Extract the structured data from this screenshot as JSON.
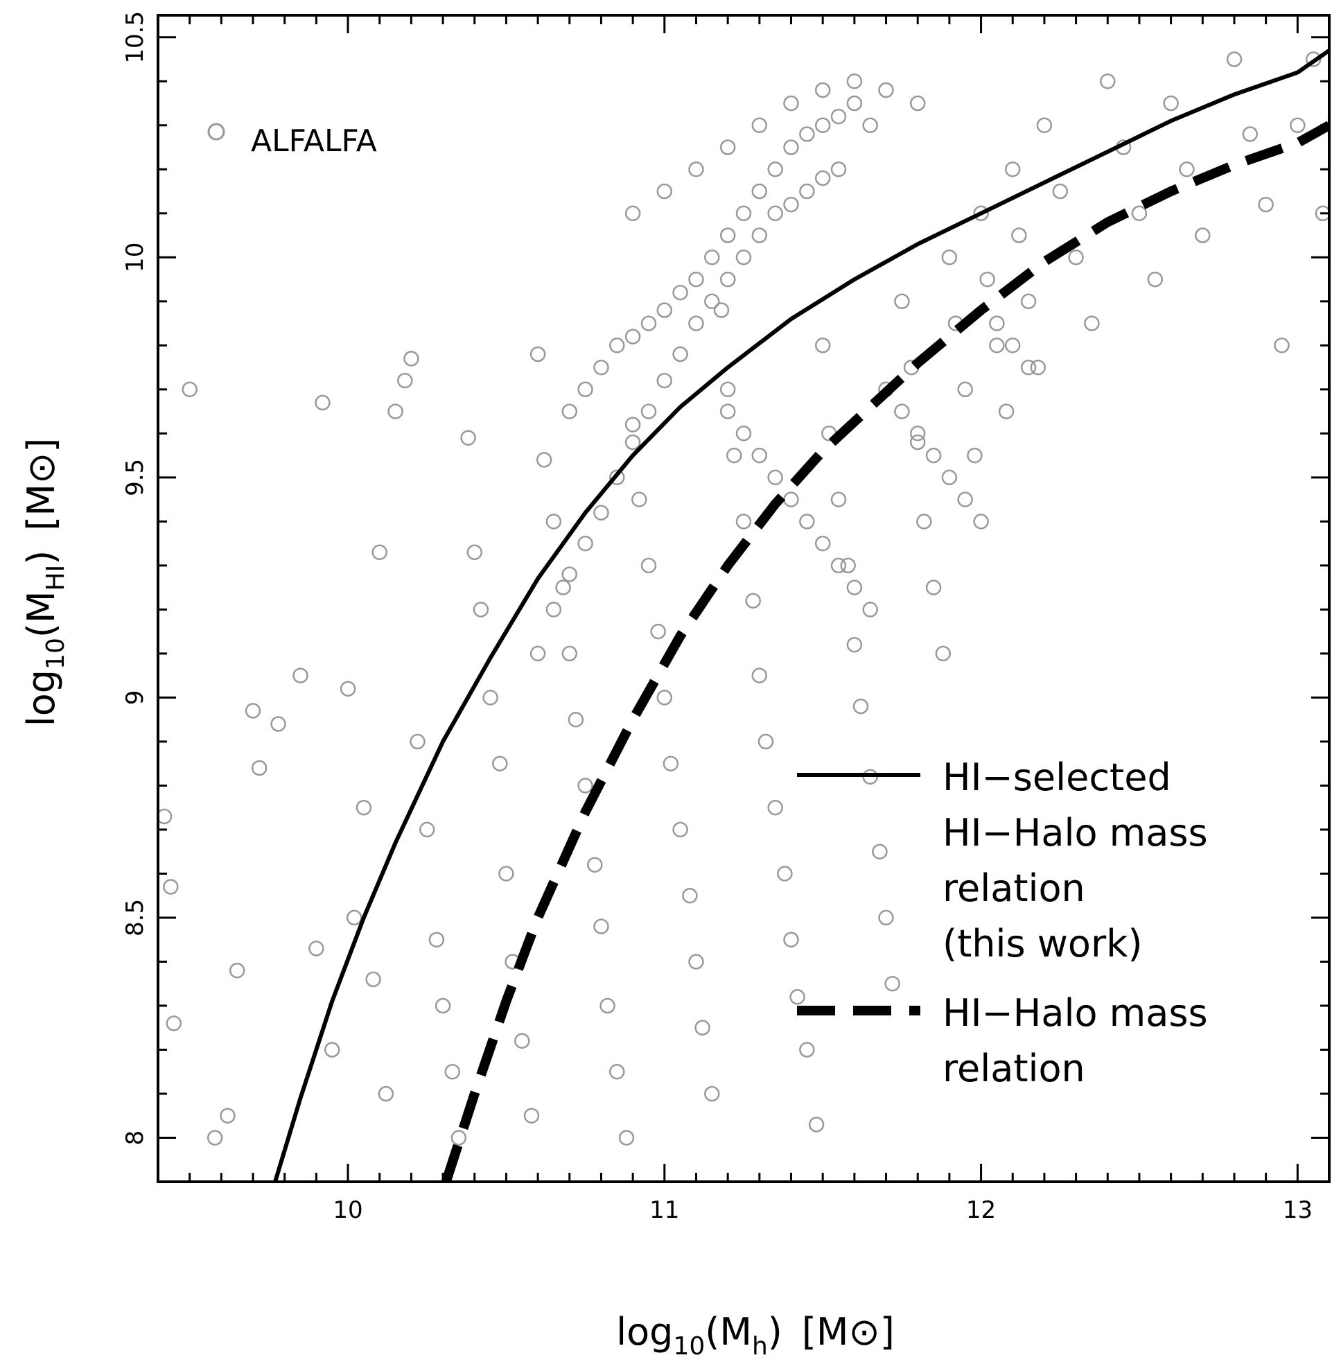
{
  "chart_data": {
    "type": "scatter",
    "xlabel": {
      "base": "log",
      "sub": "10",
      "open": "(M",
      "var_sub": "h",
      "close": ")",
      "unit": "[M⊙]"
    },
    "ylabel": {
      "base": "log",
      "sub": "10",
      "open": "(M",
      "var_sub": "HI",
      "close": ")",
      "unit": "[M⊙]"
    },
    "xlim": [
      9.4,
      13.1
    ],
    "ylim": [
      7.9,
      10.55
    ],
    "xticks": [
      10,
      11,
      12,
      13
    ],
    "xtick_labels": [
      "10",
      "11",
      "12",
      "13"
    ],
    "yticks": [
      8,
      8.5,
      9,
      9.5,
      10,
      10.5
    ],
    "ytick_labels": [
      "8",
      "8.5",
      "9",
      "9.5",
      "10",
      "10.5"
    ],
    "scatter_label": "ALFALFA",
    "scatter_color": "#999999",
    "scatter_points": [
      [
        9.5,
        9.7
      ],
      [
        9.45,
        8.26
      ],
      [
        9.42,
        8.73
      ],
      [
        9.44,
        8.57
      ],
      [
        9.58,
        8.0
      ],
      [
        9.62,
        8.05
      ],
      [
        9.65,
        8.38
      ],
      [
        9.7,
        8.97
      ],
      [
        9.72,
        8.84
      ],
      [
        9.78,
        8.94
      ],
      [
        9.85,
        9.05
      ],
      [
        9.9,
        8.43
      ],
      [
        9.95,
        8.2
      ],
      [
        9.92,
        9.67
      ],
      [
        10.0,
        9.02
      ],
      [
        10.1,
        9.33
      ],
      [
        10.05,
        8.75
      ],
      [
        10.02,
        8.5
      ],
      [
        10.08,
        8.36
      ],
      [
        10.12,
        8.1
      ],
      [
        10.15,
        9.65
      ],
      [
        10.18,
        9.72
      ],
      [
        10.2,
        9.77
      ],
      [
        10.22,
        8.9
      ],
      [
        10.25,
        8.7
      ],
      [
        10.28,
        8.45
      ],
      [
        10.3,
        8.3
      ],
      [
        10.33,
        8.15
      ],
      [
        10.35,
        8.0
      ],
      [
        10.38,
        9.59
      ],
      [
        10.4,
        9.33
      ],
      [
        10.42,
        9.2
      ],
      [
        10.45,
        9.0
      ],
      [
        10.48,
        8.85
      ],
      [
        10.5,
        8.6
      ],
      [
        10.52,
        8.4
      ],
      [
        10.55,
        8.22
      ],
      [
        10.58,
        8.05
      ],
      [
        10.6,
        9.78
      ],
      [
        10.62,
        9.54
      ],
      [
        10.65,
        9.4
      ],
      [
        10.68,
        9.25
      ],
      [
        10.7,
        9.1
      ],
      [
        10.72,
        8.95
      ],
      [
        10.75,
        8.8
      ],
      [
        10.78,
        8.62
      ],
      [
        10.8,
        8.48
      ],
      [
        10.82,
        8.3
      ],
      [
        10.85,
        8.15
      ],
      [
        10.88,
        8.0
      ],
      [
        10.9,
        9.62
      ],
      [
        10.92,
        9.45
      ],
      [
        10.95,
        9.3
      ],
      [
        10.98,
        9.15
      ],
      [
        11.0,
        9.0
      ],
      [
        11.02,
        8.85
      ],
      [
        11.05,
        8.7
      ],
      [
        11.08,
        8.55
      ],
      [
        11.1,
        8.4
      ],
      [
        11.12,
        8.25
      ],
      [
        11.15,
        8.1
      ],
      [
        11.18,
        9.88
      ],
      [
        11.2,
        9.7
      ],
      [
        11.22,
        9.55
      ],
      [
        11.25,
        9.4
      ],
      [
        11.28,
        9.22
      ],
      [
        11.3,
        9.05
      ],
      [
        11.32,
        8.9
      ],
      [
        11.35,
        8.75
      ],
      [
        11.38,
        8.6
      ],
      [
        11.4,
        8.45
      ],
      [
        11.42,
        8.32
      ],
      [
        11.45,
        8.2
      ],
      [
        11.48,
        8.03
      ],
      [
        11.5,
        9.8
      ],
      [
        11.52,
        9.6
      ],
      [
        11.55,
        9.45
      ],
      [
        11.58,
        9.3
      ],
      [
        11.6,
        9.12
      ],
      [
        11.62,
        8.98
      ],
      [
        11.65,
        8.82
      ],
      [
        11.68,
        8.65
      ],
      [
        11.7,
        8.5
      ],
      [
        11.72,
        8.35
      ],
      [
        11.75,
        9.9
      ],
      [
        11.78,
        9.75
      ],
      [
        11.8,
        9.58
      ],
      [
        11.82,
        9.4
      ],
      [
        11.85,
        9.25
      ],
      [
        11.88,
        9.1
      ],
      [
        11.9,
        10.0
      ],
      [
        11.92,
        9.85
      ],
      [
        11.95,
        9.7
      ],
      [
        11.98,
        9.55
      ],
      [
        12.0,
        10.1
      ],
      [
        12.02,
        9.95
      ],
      [
        12.05,
        9.8
      ],
      [
        12.08,
        9.65
      ],
      [
        12.1,
        10.2
      ],
      [
        12.12,
        10.05
      ],
      [
        12.15,
        9.9
      ],
      [
        12.18,
        9.75
      ],
      [
        12.2,
        10.3
      ],
      [
        12.25,
        10.15
      ],
      [
        12.3,
        10.0
      ],
      [
        12.35,
        9.85
      ],
      [
        12.4,
        10.4
      ],
      [
        12.45,
        10.25
      ],
      [
        12.5,
        10.1
      ],
      [
        12.55,
        9.95
      ],
      [
        12.6,
        10.35
      ],
      [
        12.65,
        10.2
      ],
      [
        12.7,
        10.05
      ],
      [
        12.8,
        10.45
      ],
      [
        12.85,
        10.28
      ],
      [
        12.9,
        10.12
      ],
      [
        12.95,
        9.8
      ],
      [
        13.0,
        10.3
      ],
      [
        13.05,
        10.45
      ],
      [
        13.08,
        10.1
      ],
      [
        10.6,
        9.1
      ],
      [
        10.65,
        9.2
      ],
      [
        10.7,
        9.28
      ],
      [
        10.75,
        9.35
      ],
      [
        10.8,
        9.42
      ],
      [
        10.85,
        9.5
      ],
      [
        10.9,
        9.58
      ],
      [
        10.95,
        9.65
      ],
      [
        11.0,
        9.72
      ],
      [
        11.05,
        9.78
      ],
      [
        11.1,
        9.85
      ],
      [
        11.15,
        9.9
      ],
      [
        11.2,
        9.95
      ],
      [
        11.25,
        10.0
      ],
      [
        11.3,
        10.05
      ],
      [
        11.35,
        10.1
      ],
      [
        11.4,
        10.12
      ],
      [
        11.45,
        10.15
      ],
      [
        11.5,
        10.18
      ],
      [
        11.55,
        10.2
      ],
      [
        10.7,
        9.65
      ],
      [
        10.75,
        9.7
      ],
      [
        10.8,
        9.75
      ],
      [
        10.85,
        9.8
      ],
      [
        10.9,
        9.82
      ],
      [
        10.95,
        9.85
      ],
      [
        11.0,
        9.88
      ],
      [
        11.05,
        9.92
      ],
      [
        11.1,
        9.95
      ],
      [
        11.15,
        10.0
      ],
      [
        11.2,
        10.05
      ],
      [
        11.25,
        10.1
      ],
      [
        11.3,
        10.15
      ],
      [
        11.35,
        10.2
      ],
      [
        11.4,
        10.25
      ],
      [
        11.45,
        10.28
      ],
      [
        11.5,
        10.3
      ],
      [
        11.55,
        10.32
      ],
      [
        11.6,
        10.35
      ],
      [
        11.65,
        10.3
      ],
      [
        10.9,
        10.1
      ],
      [
        11.0,
        10.15
      ],
      [
        11.1,
        10.2
      ],
      [
        11.2,
        10.25
      ],
      [
        11.3,
        10.3
      ],
      [
        11.4,
        10.35
      ],
      [
        11.5,
        10.38
      ],
      [
        11.6,
        10.4
      ],
      [
        11.7,
        10.38
      ],
      [
        11.8,
        10.35
      ],
      [
        11.2,
        9.65
      ],
      [
        11.25,
        9.6
      ],
      [
        11.3,
        9.55
      ],
      [
        11.35,
        9.5
      ],
      [
        11.4,
        9.45
      ],
      [
        11.45,
        9.4
      ],
      [
        11.5,
        9.35
      ],
      [
        11.55,
        9.3
      ],
      [
        11.6,
        9.25
      ],
      [
        11.65,
        9.2
      ],
      [
        11.7,
        9.7
      ],
      [
        11.75,
        9.65
      ],
      [
        11.8,
        9.6
      ],
      [
        11.85,
        9.55
      ],
      [
        11.9,
        9.5
      ],
      [
        11.95,
        9.45
      ],
      [
        12.0,
        9.4
      ],
      [
        12.05,
        9.85
      ],
      [
        12.1,
        9.8
      ],
      [
        12.15,
        9.75
      ]
    ],
    "series": [
      {
        "name": "HI-selected HI-Halo mass relation (this work)",
        "style": "solid",
        "x": [
          9.77,
          9.85,
          9.95,
          10.05,
          10.15,
          10.3,
          10.45,
          10.6,
          10.75,
          10.9,
          11.05,
          11.2,
          11.4,
          11.6,
          11.8,
          12.0,
          12.2,
          12.4,
          12.6,
          12.8,
          13.0,
          13.1
        ],
        "y": [
          7.9,
          8.09,
          8.31,
          8.5,
          8.67,
          8.9,
          9.09,
          9.27,
          9.42,
          9.55,
          9.66,
          9.75,
          9.86,
          9.95,
          10.03,
          10.1,
          10.17,
          10.24,
          10.31,
          10.37,
          10.42,
          10.47
        ]
      },
      {
        "name": "HI-Halo mass relation",
        "style": "dashed",
        "x": [
          10.31,
          10.4,
          10.5,
          10.6,
          10.75,
          10.9,
          11.05,
          11.2,
          11.35,
          11.5,
          11.65,
          11.8,
          12.0,
          12.2,
          12.4,
          12.6,
          12.8,
          13.0,
          13.1
        ],
        "y": [
          7.9,
          8.1,
          8.31,
          8.5,
          8.74,
          8.95,
          9.14,
          9.3,
          9.44,
          9.56,
          9.66,
          9.76,
          9.88,
          9.99,
          10.08,
          10.15,
          10.21,
          10.26,
          10.3
        ]
      }
    ],
    "legend": {
      "solid_lines": [
        "HI−selected",
        "HI−Halo mass",
        "relation",
        "(this work)"
      ],
      "dashed_lines": [
        "HI−Halo mass",
        "relation"
      ],
      "position": "bottom-right"
    }
  }
}
